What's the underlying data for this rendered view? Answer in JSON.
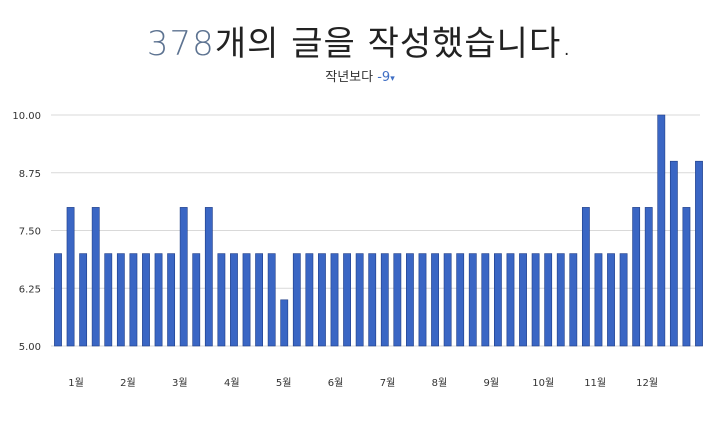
{
  "header": {
    "count": "378",
    "title_rest": "개의 글을 작성했습니다.",
    "compare_label": "작년보다",
    "compare_value": "-9",
    "compare_arrow": "▾"
  },
  "colors": {
    "bar": "#3a66c4",
    "bar_edge": "#1e3c85",
    "grid": "#d9d9d9",
    "count_text": "#5d7391",
    "delta_text": "#3f6ec4"
  },
  "chart_data": {
    "type": "bar",
    "title": "",
    "xlabel": "",
    "ylabel": "",
    "ylim": [
      5.0,
      10.0
    ],
    "yticks": [
      "5.00",
      "6.25",
      "7.50",
      "8.75",
      "10.00"
    ],
    "grid": true,
    "month_labels": [
      "1월",
      "2월",
      "3월",
      "4월",
      "5월",
      "6월",
      "7월",
      "8월",
      "9월",
      "10월",
      "11월",
      "12월"
    ],
    "values": [
      7,
      8,
      7,
      8,
      7,
      7,
      7,
      7,
      7,
      7,
      8,
      7,
      8,
      7,
      7,
      7,
      7,
      7,
      6,
      7,
      7,
      7,
      7,
      7,
      7,
      7,
      7,
      7,
      7,
      7,
      7,
      7,
      7,
      7,
      7,
      7,
      7,
      7,
      7,
      7,
      7,
      7,
      8,
      7,
      7,
      7,
      8,
      8,
      10,
      9,
      8,
      9
    ]
  }
}
